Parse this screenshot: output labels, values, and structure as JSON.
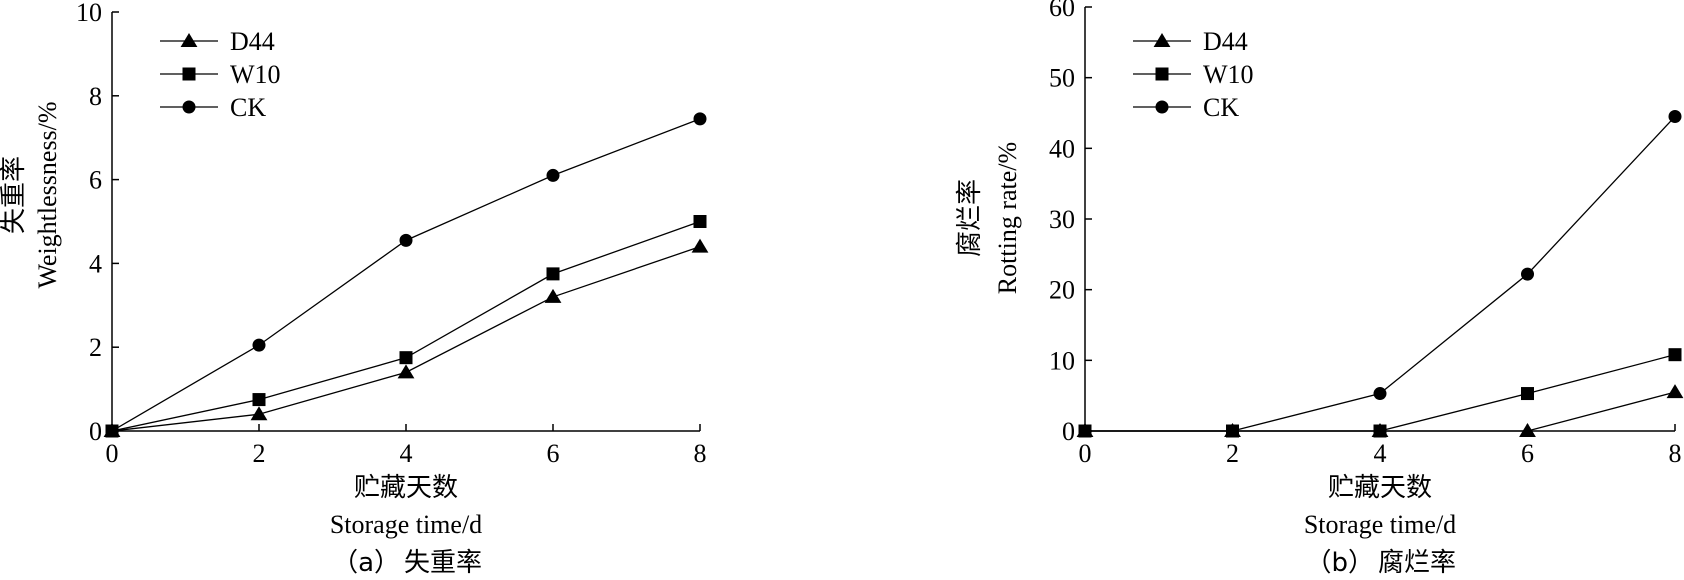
{
  "chart_data": [
    {
      "type": "line",
      "caption_label": "（a）",
      "caption_text": "失重率",
      "xlabel_cn": "贮藏天数",
      "xlabel_en": "Storage time/d",
      "ylabel_cn": "失重率",
      "ylabel_en": "Weightlessness/%",
      "xlim": [
        0,
        8
      ],
      "ylim": [
        0,
        10
      ],
      "xticks": [
        0,
        2,
        4,
        6,
        8
      ],
      "yticks": [
        0,
        2,
        4,
        6,
        8,
        10
      ],
      "legend_position": "top-left",
      "grid": false,
      "series": [
        {
          "name": "D44",
          "marker": "triangle",
          "x": [
            0,
            2,
            4,
            6,
            8
          ],
          "y": [
            0,
            0.4,
            1.4,
            3.2,
            4.4
          ]
        },
        {
          "name": "W10",
          "marker": "square",
          "x": [
            0,
            2,
            4,
            6,
            8
          ],
          "y": [
            0,
            0.75,
            1.75,
            3.75,
            5.0
          ]
        },
        {
          "name": "CK",
          "marker": "circle",
          "x": [
            0,
            2,
            4,
            6,
            8
          ],
          "y": [
            0,
            2.05,
            4.55,
            6.1,
            7.45
          ]
        }
      ]
    },
    {
      "type": "line",
      "caption_label": "（b）",
      "caption_text": "腐烂率",
      "xlabel_cn": "贮藏天数",
      "xlabel_en": "Storage time/d",
      "ylabel_cn": "腐烂率",
      "ylabel_en": "Rotting rate/%",
      "xlim": [
        0,
        8
      ],
      "ylim": [
        0,
        60
      ],
      "xticks": [
        0,
        2,
        4,
        6,
        8
      ],
      "yticks": [
        0,
        10,
        20,
        30,
        40,
        50,
        60
      ],
      "legend_position": "top-left",
      "grid": false,
      "series": [
        {
          "name": "D44",
          "marker": "triangle",
          "x": [
            0,
            2,
            4,
            6,
            8
          ],
          "y": [
            0,
            0,
            0,
            0,
            5.5
          ]
        },
        {
          "name": "W10",
          "marker": "square",
          "x": [
            0,
            2,
            4,
            6,
            8
          ],
          "y": [
            0,
            0,
            0,
            5.3,
            10.8
          ]
        },
        {
          "name": "CK",
          "marker": "circle",
          "x": [
            0,
            2,
            4,
            6,
            8
          ],
          "y": [
            0,
            0,
            5.3,
            22.2,
            44.5
          ]
        }
      ]
    }
  ]
}
